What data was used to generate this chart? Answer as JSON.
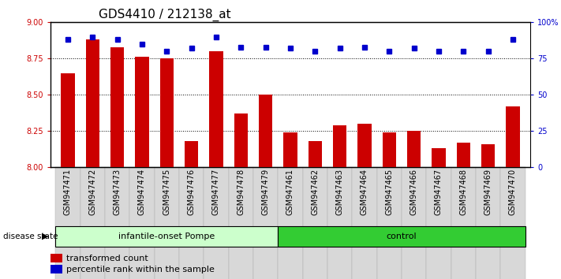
{
  "title": "GDS4410 / 212138_at",
  "samples": [
    "GSM947471",
    "GSM947472",
    "GSM947473",
    "GSM947474",
    "GSM947475",
    "GSM947476",
    "GSM947477",
    "GSM947478",
    "GSM947479",
    "GSM947461",
    "GSM947462",
    "GSM947463",
    "GSM947464",
    "GSM947465",
    "GSM947466",
    "GSM947467",
    "GSM947468",
    "GSM947469",
    "GSM947470"
  ],
  "bar_values": [
    8.65,
    8.88,
    8.83,
    8.76,
    8.75,
    8.18,
    8.8,
    8.37,
    8.5,
    8.24,
    8.18,
    8.29,
    8.3,
    8.24,
    8.25,
    8.13,
    8.17,
    8.16,
    8.42
  ],
  "dot_values": [
    88,
    90,
    88,
    85,
    80,
    82,
    90,
    83,
    83,
    82,
    80,
    82,
    83,
    80,
    82,
    80,
    80,
    80,
    88
  ],
  "ylim_left": [
    8.0,
    9.0
  ],
  "ylim_right": [
    0,
    100
  ],
  "yticks_left": [
    8.0,
    8.25,
    8.5,
    8.75,
    9.0
  ],
  "yticks_right": [
    0,
    25,
    50,
    75,
    100
  ],
  "ytick_labels_right": [
    "0",
    "25",
    "50",
    "75",
    "100%"
  ],
  "group1_label": "infantile-onset Pompe",
  "group2_label": "control",
  "group1_count": 9,
  "group2_count": 10,
  "bar_color": "#cc0000",
  "dot_color": "#0000cc",
  "group1_bg": "#ccffcc",
  "group2_bg": "#33cc33",
  "disease_state_label": "disease state",
  "legend_bar_label": "transformed count",
  "legend_dot_label": "percentile rank within the sample",
  "axis_bg": "#ffffff",
  "title_fontsize": 11,
  "tick_fontsize": 7,
  "label_fontsize": 8
}
